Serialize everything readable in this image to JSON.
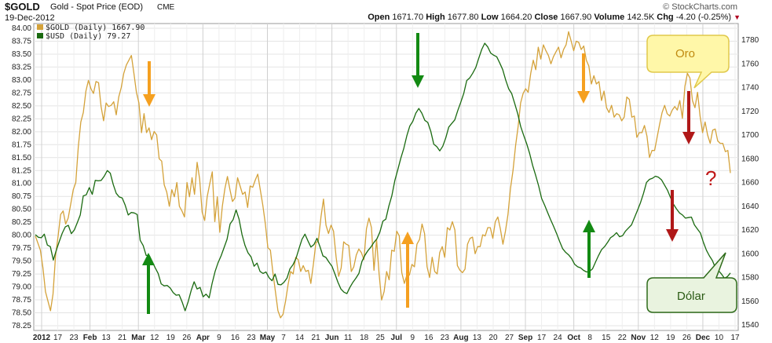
{
  "header": {
    "symbol": "$GOLD",
    "description": "Gold - Spot Price (EOD)",
    "exchange": "CME",
    "date": "19-Dec-2012",
    "brand": "© StockCharts.com",
    "quote": {
      "open_label": "Open",
      "open": "1671.70",
      "high_label": "High",
      "high": "1677.80",
      "low_label": "Low",
      "low": "1664.20",
      "close_label": "Close",
      "close": "1667.90",
      "volume_label": "Volume",
      "volume": "142.5K",
      "chg_label": "Chg",
      "chg": "-4.20 (-0.25%)"
    }
  },
  "legend": {
    "gold": "$GOLD (Daily) 1667.90",
    "usd": "$USD (Daily) 79.27"
  },
  "annotations": {
    "oro_label": "Oro",
    "dolar_label": "Dólar",
    "question": "?"
  },
  "colors": {
    "gold": "#d4a23a",
    "usd": "#1a6a10",
    "orange_arrow": "#f5a020",
    "green_arrow": "#138a13",
    "red_arrow": "#b01818",
    "callout_yellow": "#fff7a8",
    "callout_green": "#e9f3df"
  },
  "chart_data": {
    "type": "line",
    "title": "$GOLD",
    "x_labels": [
      "2012",
      "17",
      "23",
      "Feb",
      "13",
      "21",
      "Mar",
      "12",
      "19",
      "26",
      "Apr",
      "9",
      "16",
      "23",
      "May",
      "7",
      "14",
      "21",
      "Jun",
      "11",
      "18",
      "25",
      "Jul",
      "9",
      "16",
      "23",
      "Aug",
      "13",
      "20",
      "27",
      "Sep",
      "17",
      "24",
      "Oct",
      "8",
      "15",
      "22",
      "Nov",
      "12",
      "19",
      "26",
      "Dec",
      "10",
      "17"
    ],
    "bold_x_labels": [
      "2012",
      "Feb",
      "Mar",
      "Apr",
      "May",
      "Jun",
      "Jul",
      "Aug",
      "Sep",
      "Oct",
      "Nov",
      "Dec"
    ],
    "left_axis": {
      "series": "$USD",
      "ticks": [
        "84.00",
        "83.75",
        "83.50",
        "83.25",
        "83.00",
        "82.75",
        "82.50",
        "82.25",
        "82.00",
        "81.75",
        "81.50",
        "81.25",
        "81.00",
        "80.75",
        "80.50",
        "80.25",
        "80.00",
        "79.75",
        "79.50",
        "79.25",
        "79.00",
        "78.75",
        "78.50",
        "78.25"
      ],
      "ylim": [
        78.25,
        84.0
      ]
    },
    "right_axis": {
      "series": "$GOLD",
      "ticks": [
        "1780",
        "1760",
        "1740",
        "1720",
        "1700",
        "1680",
        "1660",
        "1640",
        "1620",
        "1600",
        "1580",
        "1560",
        "1540"
      ],
      "ylim": [
        1540,
        1780
      ]
    },
    "series": [
      {
        "name": "$GOLD (Daily)",
        "axis": "right",
        "last": 1667.9,
        "values": [
          1615,
          1609,
          1603,
          1588,
          1568,
          1560,
          1552,
          1566,
          1598,
          1615,
          1633,
          1636,
          1625,
          1630,
          1642,
          1654,
          1660,
          1690,
          1711,
          1719,
          1737,
          1746,
          1739,
          1735,
          1745,
          1744,
          1724,
          1712,
          1727,
          1724,
          1725,
          1728,
          1717,
          1732,
          1740,
          1752,
          1759,
          1763,
          1767,
          1752,
          1736,
          1727,
          1702,
          1718,
          1702,
          1706,
          1696,
          1703,
          1700,
          1680,
          1678,
          1658,
          1652,
          1640,
          1654,
          1648,
          1660,
          1640,
          1636,
          1631,
          1660,
          1648,
          1664,
          1650,
          1677,
          1663,
          1635,
          1628,
          1648,
          1659,
          1669,
          1627,
          1648,
          1618,
          1640,
          1655,
          1665,
          1654,
          1644,
          1647,
          1664,
          1657,
          1650,
          1652,
          1639,
          1657,
          1656,
          1662,
          1667,
          1654,
          1641,
          1625,
          1605,
          1603,
          1584,
          1568,
          1552,
          1546,
          1549,
          1560,
          1574,
          1585,
          1583,
          1597,
          1595,
          1585,
          1590,
          1585,
          1586,
          1575,
          1591,
          1609,
          1611,
          1631,
          1646,
          1624,
          1617,
          1624,
          1619,
          1597,
          1581,
          1588,
          1610,
          1608,
          1607,
          1585,
          1589,
          1599,
          1604,
          1601,
          1595,
          1621,
          1630,
          1622,
          1586,
          1612,
          1583,
          1561,
          1568,
          1585,
          1578,
          1603,
          1602,
          1619,
          1615,
          1584,
          1575,
          1582,
          1582,
          1591,
          1589,
          1608,
          1612,
          1625,
          1617,
          1589,
          1580,
          1597,
          1585,
          1583,
          1601,
          1606,
          1597,
          1622,
          1620,
          1627,
          1620,
          1590,
          1586,
          1584,
          1587,
          1608,
          1613,
          1614,
          1600,
          1606,
          1606,
          1616,
          1615,
          1622,
          1622,
          1613,
          1627,
          1631,
          1621,
          1608,
          1619,
          1633,
          1655,
          1670,
          1691,
          1707,
          1727,
          1735,
          1739,
          1736,
          1752,
          1763,
          1755,
          1774,
          1764,
          1776,
          1771,
          1767,
          1760,
          1766,
          1770,
          1774,
          1765,
          1772,
          1776,
          1787,
          1779,
          1771,
          1779,
          1778,
          1772,
          1775,
          1763,
          1758,
          1743,
          1750,
          1743,
          1745,
          1729,
          1737,
          1723,
          1719,
          1725,
          1715,
          1718,
          1717,
          1712,
          1715,
          1732,
          1730,
          1715,
          1716,
          1698,
          1702,
          1702,
          1708,
          1699,
          1681,
          1687,
          1687,
          1698,
          1709,
          1719,
          1725,
          1718,
          1716,
          1721,
          1724,
          1721,
          1729,
          1714,
          1741,
          1752,
          1748,
          1729,
          1723,
          1736,
          1716,
          1702,
          1711,
          1700,
          1693,
          1704,
          1705,
          1695,
          1693,
          1693,
          1686,
          1687,
          1668
        ]
      },
      {
        "name": "$USD (Daily)",
        "axis": "left",
        "last": 79.27,
        "values": [
          80.01,
          79.96,
          79.95,
          80.02,
          79.81,
          79.78,
          79.52,
          79.71,
          79.88,
          80.04,
          80.16,
          80.19,
          80.03,
          80.1,
          80.24,
          80.39,
          80.76,
          80.78,
          80.92,
          80.79,
          81.06,
          81.05,
          81.06,
          81.14,
          81.25,
          81.2,
          80.98,
          80.81,
          80.74,
          80.72,
          80.58,
          80.39,
          80.44,
          80.43,
          80.4,
          79.9,
          79.8,
          79.61,
          79.61,
          79.49,
          79.37,
          79.26,
          79.06,
          79.02,
          79.03,
          78.98,
          78.89,
          78.84,
          78.85,
          78.71,
          78.54,
          78.71,
          78.93,
          79.1,
          78.96,
          78.99,
          78.81,
          78.86,
          78.79,
          79.07,
          79.3,
          79.47,
          79.6,
          79.76,
          79.92,
          80.22,
          80.3,
          80.49,
          80.31,
          80.01,
          79.8,
          79.66,
          79.58,
          79.4,
          79.46,
          79.3,
          79.26,
          79.29,
          79.18,
          79.12,
          79.25,
          79.05,
          79.04,
          79.09,
          79.17,
          79.35,
          79.43,
          79.55,
          79.74,
          79.92,
          80.02,
          79.89,
          79.77,
          79.82,
          79.94,
          79.78,
          79.6,
          79.57,
          79.48,
          79.4,
          79.25,
          79.09,
          78.96,
          78.9,
          78.87,
          78.99,
          79.09,
          79.17,
          79.26,
          79.49,
          79.61,
          79.7,
          79.77,
          79.86,
          79.93,
          80.06,
          80.27,
          80.31,
          80.56,
          80.76,
          81.06,
          81.27,
          81.49,
          81.68,
          81.92,
          82.11,
          82.2,
          82.36,
          82.45,
          82.36,
          82.22,
          82.18,
          82.01,
          81.76,
          81.71,
          81.63,
          81.72,
          81.88,
          82.09,
          82.16,
          82.23,
          82.41,
          82.57,
          82.74,
          82.99,
          83.04,
          83.13,
          83.24,
          83.42,
          83.59,
          83.71,
          83.64,
          83.52,
          83.48,
          83.45,
          83.33,
          83.2,
          83.0,
          82.83,
          82.74,
          82.55,
          82.35,
          82.1,
          81.93,
          81.77,
          81.58,
          81.35,
          81.16,
          80.95,
          80.71,
          80.58,
          80.44,
          80.3,
          80.17,
          80.03,
          79.88,
          79.74,
          79.67,
          79.62,
          79.55,
          79.44,
          79.39,
          79.37,
          79.32,
          79.29,
          79.3,
          79.35,
          79.48,
          79.61,
          79.72,
          79.78,
          79.86,
          79.95,
          79.99,
          80.05,
          79.97,
          79.99,
          80.08,
          80.14,
          80.2,
          80.34,
          80.48,
          80.63,
          80.81,
          81.02,
          81.08,
          81.1,
          81.14,
          81.12,
          81.07,
          80.97,
          80.87,
          80.73,
          80.6,
          80.51,
          80.43,
          80.39,
          80.33,
          80.34,
          80.35,
          80.2,
          80.12,
          80.04,
          79.86,
          79.71,
          79.6,
          79.51,
          79.37,
          79.32,
          79.25,
          79.17,
          79.2,
          79.27
        ]
      }
    ]
  }
}
